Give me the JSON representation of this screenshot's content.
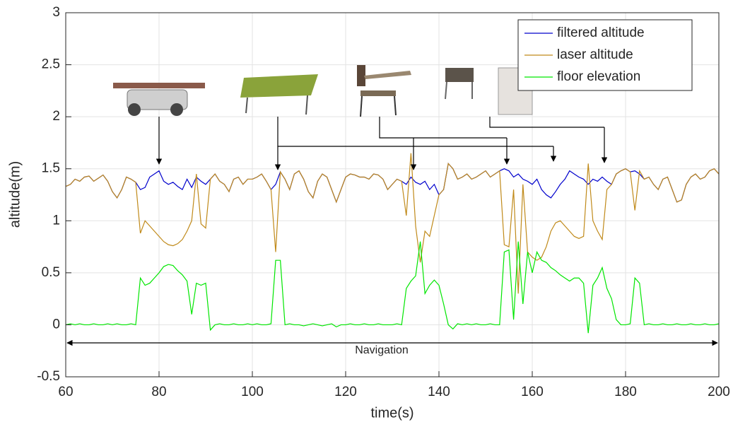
{
  "chart_data": {
    "type": "line",
    "xlabel": "time(s)",
    "ylabel": "altitude(m)",
    "annotation": "Navigation",
    "xlim": [
      60,
      200
    ],
    "xticks": [
      60,
      80,
      100,
      120,
      140,
      160,
      180,
      200
    ],
    "ylim": [
      -0.5,
      3
    ],
    "yticks": [
      -0.5,
      0,
      0.5,
      1,
      1.5,
      2,
      2.5,
      3
    ],
    "grid": true,
    "legend": "upper right",
    "x": [
      60,
      61,
      62,
      63,
      64,
      65,
      66,
      67,
      68,
      69,
      70,
      71,
      72,
      73,
      74,
      75,
      76,
      77,
      78,
      79,
      80,
      81,
      82,
      83,
      84,
      85,
      86,
      87,
      88,
      89,
      90,
      91,
      92,
      93,
      94,
      95,
      96,
      97,
      98,
      99,
      100,
      101,
      102,
      103,
      104,
      105,
      106,
      107,
      108,
      109,
      110,
      111,
      112,
      113,
      114,
      115,
      116,
      117,
      118,
      119,
      120,
      121,
      122,
      123,
      124,
      125,
      126,
      127,
      128,
      129,
      130,
      131,
      132,
      133,
      134,
      135,
      136,
      137,
      138,
      139,
      140,
      141,
      142,
      143,
      144,
      145,
      146,
      147,
      148,
      149,
      150,
      151,
      152,
      153,
      154,
      155,
      156,
      157,
      158,
      159,
      160,
      161,
      162,
      163,
      164,
      165,
      166,
      167,
      168,
      169,
      170,
      171,
      172,
      173,
      174,
      175,
      176,
      177,
      178,
      179,
      180,
      181,
      182,
      183,
      184,
      185,
      186,
      187,
      188,
      189,
      190,
      191,
      192,
      193,
      194,
      195,
      196,
      197,
      198,
      199,
      200
    ],
    "series": [
      {
        "name": "filtered altitude",
        "color": "#0000cc",
        "values": [
          1.33,
          1.35,
          1.4,
          1.38,
          1.42,
          1.43,
          1.38,
          1.41,
          1.44,
          1.38,
          1.28,
          1.22,
          1.3,
          1.42,
          1.4,
          1.37,
          1.3,
          1.32,
          1.42,
          1.45,
          1.48,
          1.38,
          1.35,
          1.37,
          1.33,
          1.3,
          1.4,
          1.32,
          1.42,
          1.38,
          1.35,
          1.4,
          1.45,
          1.38,
          1.35,
          1.28,
          1.4,
          1.42,
          1.35,
          1.4,
          1.4,
          1.42,
          1.45,
          1.38,
          1.3,
          1.35,
          1.47,
          1.4,
          1.3,
          1.45,
          1.48,
          1.4,
          1.28,
          1.22,
          1.38,
          1.45,
          1.42,
          1.3,
          1.18,
          1.3,
          1.42,
          1.45,
          1.44,
          1.42,
          1.42,
          1.4,
          1.45,
          1.44,
          1.4,
          1.3,
          1.35,
          1.4,
          1.38,
          1.35,
          1.42,
          1.37,
          1.35,
          1.38,
          1.3,
          1.35,
          1.25,
          1.3,
          1.55,
          1.5,
          1.4,
          1.42,
          1.45,
          1.4,
          1.42,
          1.45,
          1.48,
          1.42,
          1.45,
          1.48,
          1.5,
          1.48,
          1.42,
          1.45,
          1.4,
          1.38,
          1.35,
          1.4,
          1.3,
          1.25,
          1.22,
          1.28,
          1.35,
          1.4,
          1.48,
          1.45,
          1.42,
          1.4,
          1.35,
          1.4,
          1.38,
          1.42,
          1.38,
          1.35,
          1.45,
          1.48,
          1.5,
          1.47,
          1.48,
          1.45,
          1.4,
          1.42,
          1.35,
          1.3,
          1.4,
          1.42,
          1.3,
          1.18,
          1.2,
          1.35,
          1.42,
          1.45,
          1.4,
          1.42,
          1.48,
          1.5,
          1.45
        ]
      },
      {
        "name": "laser altitude",
        "color": "#c08a1a",
        "values": [
          1.33,
          1.35,
          1.4,
          1.38,
          1.42,
          1.43,
          1.38,
          1.41,
          1.44,
          1.38,
          1.28,
          1.22,
          1.3,
          1.42,
          1.4,
          1.37,
          0.88,
          1.0,
          0.95,
          0.9,
          0.85,
          0.8,
          0.77,
          0.76,
          0.78,
          0.82,
          0.9,
          1.0,
          1.45,
          0.97,
          0.93,
          1.4,
          1.45,
          1.38,
          1.35,
          1.28,
          1.4,
          1.42,
          1.35,
          1.4,
          1.4,
          1.42,
          1.45,
          1.38,
          1.3,
          0.7,
          1.47,
          1.4,
          1.3,
          1.45,
          1.48,
          1.4,
          1.28,
          1.22,
          1.38,
          1.45,
          1.42,
          1.3,
          1.18,
          1.3,
          1.42,
          1.45,
          1.44,
          1.42,
          1.42,
          1.4,
          1.45,
          1.44,
          1.4,
          1.3,
          1.35,
          1.4,
          1.38,
          1.05,
          1.65,
          0.95,
          0.6,
          0.9,
          0.85,
          1.05,
          1.25,
          1.3,
          1.55,
          1.5,
          1.4,
          1.42,
          1.45,
          1.4,
          1.42,
          1.45,
          1.48,
          1.42,
          1.45,
          1.48,
          0.77,
          0.75,
          1.3,
          0.3,
          1.35,
          0.7,
          0.65,
          0.62,
          0.65,
          0.75,
          0.9,
          0.98,
          1.0,
          0.95,
          0.9,
          0.85,
          0.83,
          0.85,
          1.55,
          1.0,
          0.9,
          0.82,
          1.3,
          1.35,
          1.45,
          1.48,
          1.5,
          1.47,
          1.1,
          1.48,
          1.4,
          1.42,
          1.35,
          1.3,
          1.4,
          1.42,
          1.3,
          1.18,
          1.2,
          1.35,
          1.42,
          1.45,
          1.4,
          1.42,
          1.48,
          1.5,
          1.45
        ]
      },
      {
        "name": "floor elevation",
        "color": "#00e600",
        "values": [
          0,
          0.01,
          0,
          0.01,
          0,
          0,
          0.01,
          0,
          0,
          0.01,
          0,
          0.01,
          0,
          0,
          0.01,
          0,
          0.45,
          0.38,
          0.4,
          0.45,
          0.5,
          0.56,
          0.58,
          0.57,
          0.52,
          0.48,
          0.42,
          0.1,
          0.4,
          0.38,
          0.4,
          -0.05,
          0,
          0.01,
          0,
          0,
          0.01,
          0,
          0,
          0.01,
          0,
          0.01,
          0,
          0,
          0.01,
          0.62,
          0.62,
          0,
          0.01,
          0,
          0,
          -0.01,
          0,
          0.01,
          0,
          -0.01,
          0,
          0.01,
          -0.02,
          0,
          0,
          0.01,
          0,
          0,
          0.01,
          0,
          0,
          0.01,
          0,
          0,
          0,
          0.01,
          0,
          0.35,
          0.42,
          0.47,
          0.8,
          0.3,
          0.38,
          0.43,
          0.38,
          0.2,
          0,
          -0.04,
          0.01,
          0,
          0.01,
          0,
          0.01,
          0,
          0,
          0.01,
          0,
          0,
          0.7,
          0.72,
          0.05,
          0.8,
          0.2,
          0.7,
          0.5,
          0.7,
          0.62,
          0.6,
          0.55,
          0.52,
          0.48,
          0.45,
          0.42,
          0.45,
          0.45,
          0.4,
          -0.08,
          0.38,
          0.45,
          0.55,
          0.35,
          0.25,
          0.05,
          0,
          0,
          0.01,
          0.45,
          0.4,
          0,
          0.01,
          0,
          0,
          0.01,
          0,
          0,
          0.01,
          0,
          0,
          0.01,
          0,
          0,
          0.01,
          0,
          0,
          0.01
        ]
      }
    ]
  }
}
